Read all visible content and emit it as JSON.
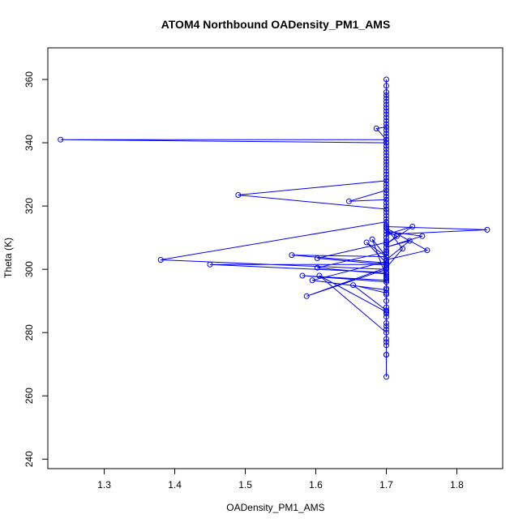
{
  "chart_data": {
    "type": "line",
    "title": "ATOM4 Northbound OADensity_PM1_AMS",
    "xlabel": "OADensity_PM1_AMS",
    "ylabel": "Theta (K)",
    "xlim": [
      1.22,
      1.865
    ],
    "ylim": [
      237,
      370
    ],
    "x_ticks": [
      1.3,
      1.4,
      1.5,
      1.6,
      1.7,
      1.8
    ],
    "x_tick_labels": [
      "1.3",
      "1.4",
      "1.5",
      "1.6",
      "1.7",
      "1.8"
    ],
    "y_ticks": [
      240,
      260,
      280,
      300,
      320,
      340,
      360
    ],
    "y_tick_labels": [
      "240",
      "260",
      "280",
      "300",
      "320",
      "340",
      "360"
    ],
    "grid": false,
    "legend": "none",
    "series": [
      {
        "color": "#0000ff",
        "marker": "open-circle",
        "line": true,
        "points": [
          [
            1.7,
            266.0
          ],
          [
            1.7,
            273.0
          ],
          [
            1.7,
            276.0
          ],
          [
            1.7,
            277.0
          ],
          [
            1.7,
            278.0
          ],
          [
            1.7,
            281.0
          ],
          [
            1.7,
            282.0
          ],
          [
            1.7,
            283.0
          ],
          [
            1.7,
            285.0
          ],
          [
            1.7,
            286.0
          ],
          [
            1.7,
            287.0
          ],
          [
            1.7,
            288.0
          ],
          [
            1.7,
            290.0
          ],
          [
            1.7,
            292.0
          ],
          [
            1.7,
            294.0
          ],
          [
            1.7,
            296.0
          ],
          [
            1.7,
            297.0
          ],
          [
            1.7,
            298.0
          ],
          [
            1.7,
            299.0
          ],
          [
            1.7,
            300.0
          ],
          [
            1.7,
            301.0
          ],
          [
            1.7,
            302.0
          ],
          [
            1.7,
            303.0
          ],
          [
            1.7,
            304.0
          ],
          [
            1.7,
            305.0
          ],
          [
            1.7,
            306.0
          ],
          [
            1.7,
            307.0
          ],
          [
            1.7,
            308.0
          ],
          [
            1.7,
            309.0
          ],
          [
            1.7,
            310.0
          ],
          [
            1.7,
            311.0
          ],
          [
            1.7,
            312.0
          ],
          [
            1.7,
            313.0
          ],
          [
            1.7,
            314.0
          ],
          [
            1.7,
            315.0
          ],
          [
            1.7,
            316.0
          ],
          [
            1.7,
            317.0
          ],
          [
            1.7,
            318.0
          ],
          [
            1.7,
            319.0
          ],
          [
            1.7,
            320.0
          ],
          [
            1.7,
            321.0
          ],
          [
            1.7,
            322.0
          ],
          [
            1.7,
            323.0
          ],
          [
            1.7,
            324.0
          ],
          [
            1.7,
            325.0
          ],
          [
            1.7,
            326.0
          ],
          [
            1.7,
            327.0
          ],
          [
            1.7,
            328.0
          ],
          [
            1.7,
            329.0
          ],
          [
            1.7,
            330.0
          ],
          [
            1.7,
            331.0
          ],
          [
            1.7,
            332.0
          ],
          [
            1.7,
            333.0
          ],
          [
            1.7,
            334.0
          ],
          [
            1.7,
            335.0
          ],
          [
            1.7,
            336.0
          ],
          [
            1.7,
            337.0
          ],
          [
            1.7,
            338.0
          ],
          [
            1.7,
            339.0
          ],
          [
            1.7,
            340.0
          ],
          [
            1.7,
            341.0
          ],
          [
            1.7,
            342.0
          ],
          [
            1.7,
            343.0
          ],
          [
            1.7,
            344.0
          ],
          [
            1.7,
            345.0
          ],
          [
            1.7,
            346.0
          ],
          [
            1.7,
            347.0
          ],
          [
            1.7,
            348.0
          ],
          [
            1.7,
            349.0
          ],
          [
            1.7,
            350.0
          ],
          [
            1.7,
            351.0
          ],
          [
            1.7,
            352.0
          ],
          [
            1.7,
            353.0
          ],
          [
            1.7,
            354.0
          ],
          [
            1.7,
            355.0
          ],
          [
            1.7,
            356.0
          ],
          [
            1.7,
            358.0
          ],
          [
            1.7,
            360.0
          ],
          [
            1.7,
            345.0
          ],
          [
            1.686,
            344.5
          ],
          [
            1.7,
            341.0
          ],
          [
            1.238,
            341.0
          ],
          [
            1.7,
            340.0
          ],
          [
            1.7,
            328.0
          ],
          [
            1.49,
            323.5
          ],
          [
            1.7,
            319.0
          ],
          [
            1.7,
            322.0
          ],
          [
            1.647,
            321.5
          ],
          [
            1.7,
            325.0
          ],
          [
            1.7,
            315.0
          ],
          [
            1.38,
            303.0
          ],
          [
            1.7,
            300.0
          ],
          [
            1.7,
            301.5
          ],
          [
            1.45,
            301.5
          ],
          [
            1.7,
            299.0
          ],
          [
            1.7,
            313.5
          ],
          [
            1.843,
            312.5
          ],
          [
            1.7,
            311.0
          ],
          [
            1.737,
            313.5
          ],
          [
            1.7,
            308.0
          ],
          [
            1.715,
            310.5
          ],
          [
            1.7,
            312.0
          ],
          [
            1.751,
            310.5
          ],
          [
            1.7,
            307.0
          ],
          [
            1.733,
            309.0
          ],
          [
            1.7,
            303.0
          ],
          [
            1.758,
            306.0
          ],
          [
            1.7,
            313.0
          ],
          [
            1.723,
            306.5
          ],
          [
            1.7,
            300.5
          ],
          [
            1.7,
            297.5
          ],
          [
            1.68,
            309.5
          ],
          [
            1.7,
            304.0
          ],
          [
            1.672,
            308.5
          ],
          [
            1.7,
            302.0
          ],
          [
            1.566,
            304.5
          ],
          [
            1.7,
            304.0
          ],
          [
            1.7,
            308.5
          ],
          [
            1.602,
            303.5
          ],
          [
            1.7,
            301.5
          ],
          [
            1.7,
            305.5
          ],
          [
            1.602,
            300.5
          ],
          [
            1.7,
            298.5
          ],
          [
            1.7,
            296.5
          ],
          [
            1.581,
            298.0
          ],
          [
            1.7,
            296.0
          ],
          [
            1.7,
            293.5
          ],
          [
            1.595,
            296.5
          ],
          [
            1.7,
            302.5
          ],
          [
            1.7,
            292.5
          ],
          [
            1.653,
            295.0
          ],
          [
            1.7,
            287.0
          ],
          [
            1.7,
            300.0
          ],
          [
            1.587,
            291.5
          ],
          [
            1.7,
            300.5
          ],
          [
            1.7,
            286.5
          ],
          [
            1.605,
            298.0
          ],
          [
            1.7,
            280.0
          ],
          [
            1.7,
            297.0
          ],
          [
            1.7,
            273.0
          ]
        ]
      }
    ]
  }
}
